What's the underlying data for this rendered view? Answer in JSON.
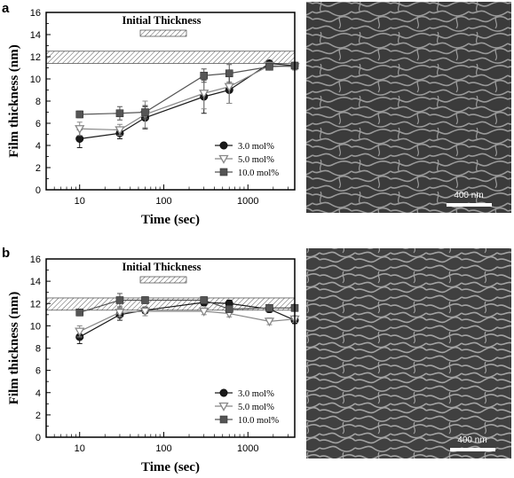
{
  "figure": {
    "panel_labels": [
      "a",
      "b"
    ],
    "micrograph_scale_bars": [
      "400 nm",
      "400 nm"
    ]
  },
  "chart_data": [
    {
      "type": "line",
      "panel": "a",
      "xlabel": "Time (sec)",
      "ylabel": "Film thickness (nm)",
      "x_scale": "log",
      "xlim": [
        4,
        3600
      ],
      "ylim": [
        0,
        16
      ],
      "xticks": [
        10,
        100,
        1000
      ],
      "yticks": [
        0,
        2,
        4,
        6,
        8,
        10,
        12,
        14,
        16
      ],
      "band": {
        "label": "Initial Thickness",
        "ymin": 11.4,
        "ymax": 12.5
      },
      "legend_position": "bottom-right",
      "series": [
        {
          "name": "3.0 mol%",
          "marker": "circle",
          "color": "#1a1a1a",
          "x": [
            10,
            30,
            60,
            300,
            600,
            1800,
            3600
          ],
          "y": [
            4.6,
            5.1,
            6.5,
            8.4,
            9.0,
            11.4,
            11.2
          ],
          "err": [
            0.8,
            0.5,
            1.0,
            1.5,
            1.2,
            0.2,
            0.2
          ]
        },
        {
          "name": "5.0 mol%",
          "marker": "triangle-down",
          "color": "#888888",
          "x": [
            10,
            30,
            60,
            300,
            600,
            1800,
            3600
          ],
          "y": [
            5.5,
            5.4,
            6.8,
            8.7,
            9.3,
            11.2,
            11.1
          ],
          "err": [
            0.6,
            0.5,
            1.2,
            1.4,
            1.5,
            0.3,
            0.3
          ]
        },
        {
          "name": "10.0 mol%",
          "marker": "square",
          "color": "#555555",
          "x": [
            10,
            30,
            60,
            300,
            600,
            1800,
            3600
          ],
          "y": [
            6.8,
            6.9,
            7.0,
            10.3,
            10.5,
            11.1,
            11.2
          ],
          "err": [
            0.3,
            0.6,
            0.6,
            0.6,
            0.8,
            0.3,
            0.3
          ]
        }
      ]
    },
    {
      "type": "line",
      "panel": "b",
      "xlabel": "Time (sec)",
      "ylabel": "Film thickness (nm)",
      "x_scale": "log",
      "xlim": [
        4,
        3600
      ],
      "ylim": [
        0,
        16
      ],
      "xticks": [
        10,
        100,
        1000
      ],
      "yticks": [
        0,
        2,
        4,
        6,
        8,
        10,
        12,
        14,
        16
      ],
      "band": {
        "label": "Initial Thickness",
        "ymin": 11.4,
        "ymax": 12.5
      },
      "legend_position": "bottom-right",
      "series": [
        {
          "name": "3.0 mol%",
          "marker": "circle",
          "color": "#1a1a1a",
          "x": [
            10,
            30,
            60,
            300,
            600,
            1800,
            3600
          ],
          "y": [
            9.0,
            11.0,
            11.4,
            12.1,
            12.0,
            11.5,
            10.5
          ],
          "err": [
            0.6,
            0.5,
            0.3,
            0.3,
            0.3,
            0.3,
            0.3
          ]
        },
        {
          "name": "5.0 mol%",
          "marker": "triangle-down",
          "color": "#888888",
          "x": [
            10,
            30,
            60,
            300,
            600,
            1800,
            3600
          ],
          "y": [
            9.5,
            11.2,
            11.3,
            11.3,
            11.1,
            10.4,
            10.6
          ],
          "err": [
            0.5,
            0.4,
            0.4,
            0.3,
            0.3,
            0.3,
            0.3
          ]
        },
        {
          "name": "10.0 mol%",
          "marker": "square",
          "color": "#555555",
          "x": [
            10,
            30,
            60,
            300,
            600,
            1800,
            3600
          ],
          "y": [
            11.2,
            12.3,
            12.3,
            12.3,
            11.5,
            11.6,
            11.6
          ],
          "err": [
            0.3,
            0.6,
            0.3,
            0.3,
            0.3,
            0.3,
            0.3
          ]
        }
      ]
    }
  ]
}
